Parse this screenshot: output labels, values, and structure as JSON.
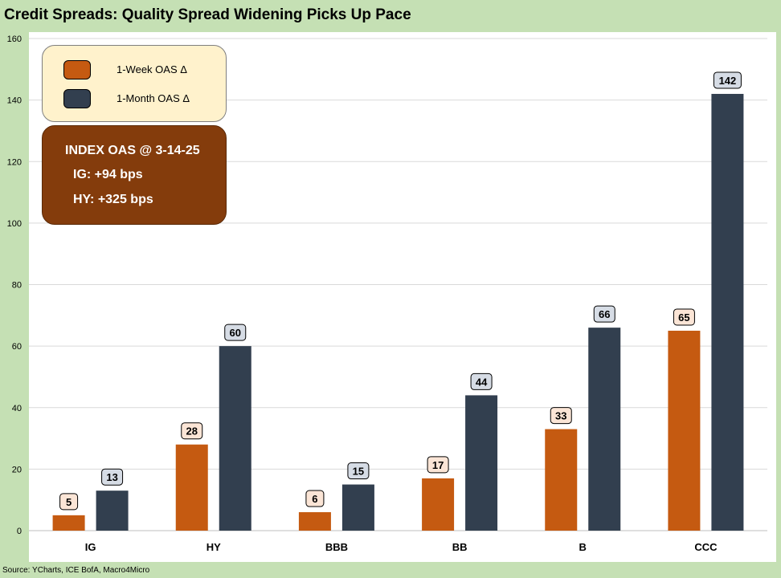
{
  "title": "Credit Spreads: Quality Spread Widening Picks Up Pace",
  "source": "Source: YCharts, ICE BofA, Macro4Micro",
  "legend": {
    "week_label": "1-Week OAS Δ",
    "month_label": "1-Month OAS Δ"
  },
  "index_box": {
    "title": "INDEX OAS @ 3-14-25",
    "ig": "IG:     +94 bps",
    "hy": "HY:  +325 bps"
  },
  "colors": {
    "week": "#c55a11",
    "month": "#323f4f",
    "week_label_bg": "#fbe5d6",
    "month_label_bg": "#d6dce5",
    "background": "#c5e0b4",
    "plot_bg": "#ffffff",
    "index_box_bg": "#843c0c",
    "legend_bg": "#fff2cc"
  },
  "chart_data": {
    "type": "bar",
    "title": "Credit Spreads: Quality Spread Widening Picks Up Pace",
    "xlabel": "",
    "ylabel": "",
    "categories": [
      "IG",
      "HY",
      "BBB",
      "BB",
      "B",
      "CCC"
    ],
    "series": [
      {
        "name": "1-Week OAS Δ",
        "values": [
          5,
          28,
          6,
          17,
          33,
          65
        ]
      },
      {
        "name": "1-Month OAS Δ",
        "values": [
          13,
          60,
          15,
          44,
          66,
          142
        ]
      }
    ],
    "ylim": [
      0,
      160
    ],
    "yticks": [
      0,
      20,
      40,
      60,
      80,
      100,
      120,
      140,
      160
    ],
    "grid": true,
    "legend_position": "top-left"
  }
}
